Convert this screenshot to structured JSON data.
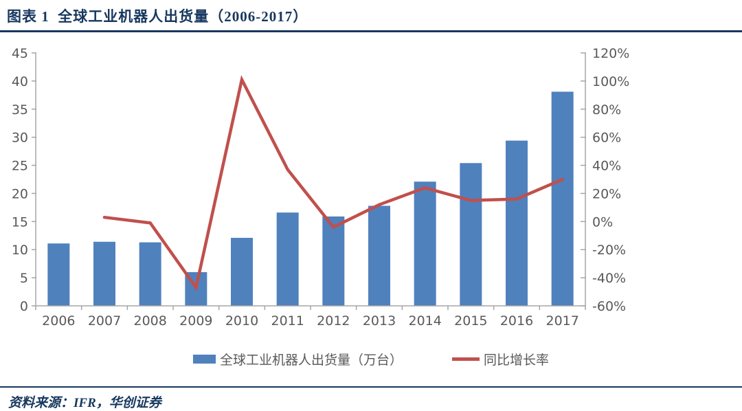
{
  "page": {
    "title": "图表 1  全球工业机器人出货量（2006-2017）",
    "source_label": "资料来源：IFR，华创证券"
  },
  "colors": {
    "navy": "#17375E",
    "bar_blue": "#4F81BD",
    "line_red": "#C0504D",
    "axis_line": "#A6A6A6",
    "axis_text": "#595959"
  },
  "chart_data": {
    "type": "bar+line combo",
    "title": "全球工业机器人出货量（2006-2017）",
    "categories": [
      "2006",
      "2007",
      "2008",
      "2009",
      "2010",
      "2011",
      "2012",
      "2013",
      "2014",
      "2015",
      "2016",
      "2017"
    ],
    "series": [
      {
        "name": "全球工业机器人出货量（万台）",
        "type": "bar",
        "axis": "left",
        "values": [
          11.1,
          11.4,
          11.3,
          6.0,
          12.1,
          16.6,
          15.9,
          17.8,
          22.1,
          25.4,
          29.4,
          38.1
        ]
      },
      {
        "name": "同比增长率",
        "type": "line",
        "axis": "right",
        "unit": "%",
        "values": [
          null,
          3,
          -1,
          -47,
          101,
          37,
          -4,
          12,
          24,
          15,
          16,
          30
        ]
      }
    ],
    "left_axis": {
      "min": 0,
      "max": 45,
      "step": 5,
      "suffix": ""
    },
    "right_axis": {
      "min": -60,
      "max": 120,
      "step": 20,
      "suffix": "%"
    },
    "grid": false,
    "legend_position": "bottom"
  }
}
